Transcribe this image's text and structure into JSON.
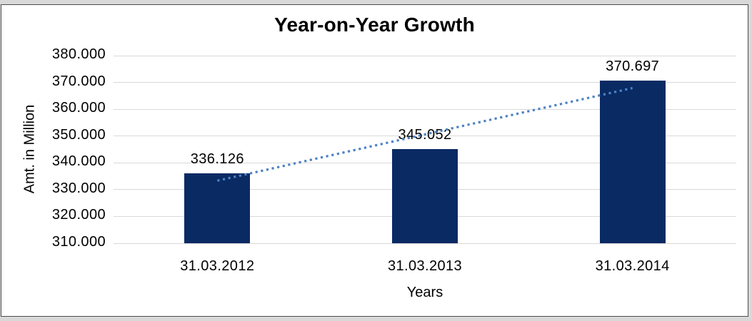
{
  "window": {
    "background_color": "#d9d9d9",
    "chart_background_color": "#ffffff",
    "chart_border_color": "#4d4d4d"
  },
  "chart_data": {
    "type": "bar",
    "title": "Year-on-Year Growth",
    "xlabel": "Years",
    "ylabel": "Amt. in Million",
    "categories": [
      "31.03.2012",
      "31.03.2013",
      "31.03.2014"
    ],
    "values": [
      336.126,
      345.052,
      370.697
    ],
    "data_labels": [
      "336.126",
      "345.052",
      "370.697"
    ],
    "ylim": [
      310,
      380
    ],
    "ytick_step": 10,
    "ytick_labels": [
      "310.000",
      "320.000",
      "330.000",
      "340.000",
      "350.000",
      "360.000",
      "370.000",
      "380.000"
    ],
    "grid": "horizontal-gridlines-on",
    "legend": "none",
    "bar_color": "#0a2a64",
    "gridline_color": "#d9d9d9",
    "text_color": "#000000",
    "trendline": {
      "type": "linear",
      "style": "dotted",
      "color": "#4d82c3"
    }
  }
}
